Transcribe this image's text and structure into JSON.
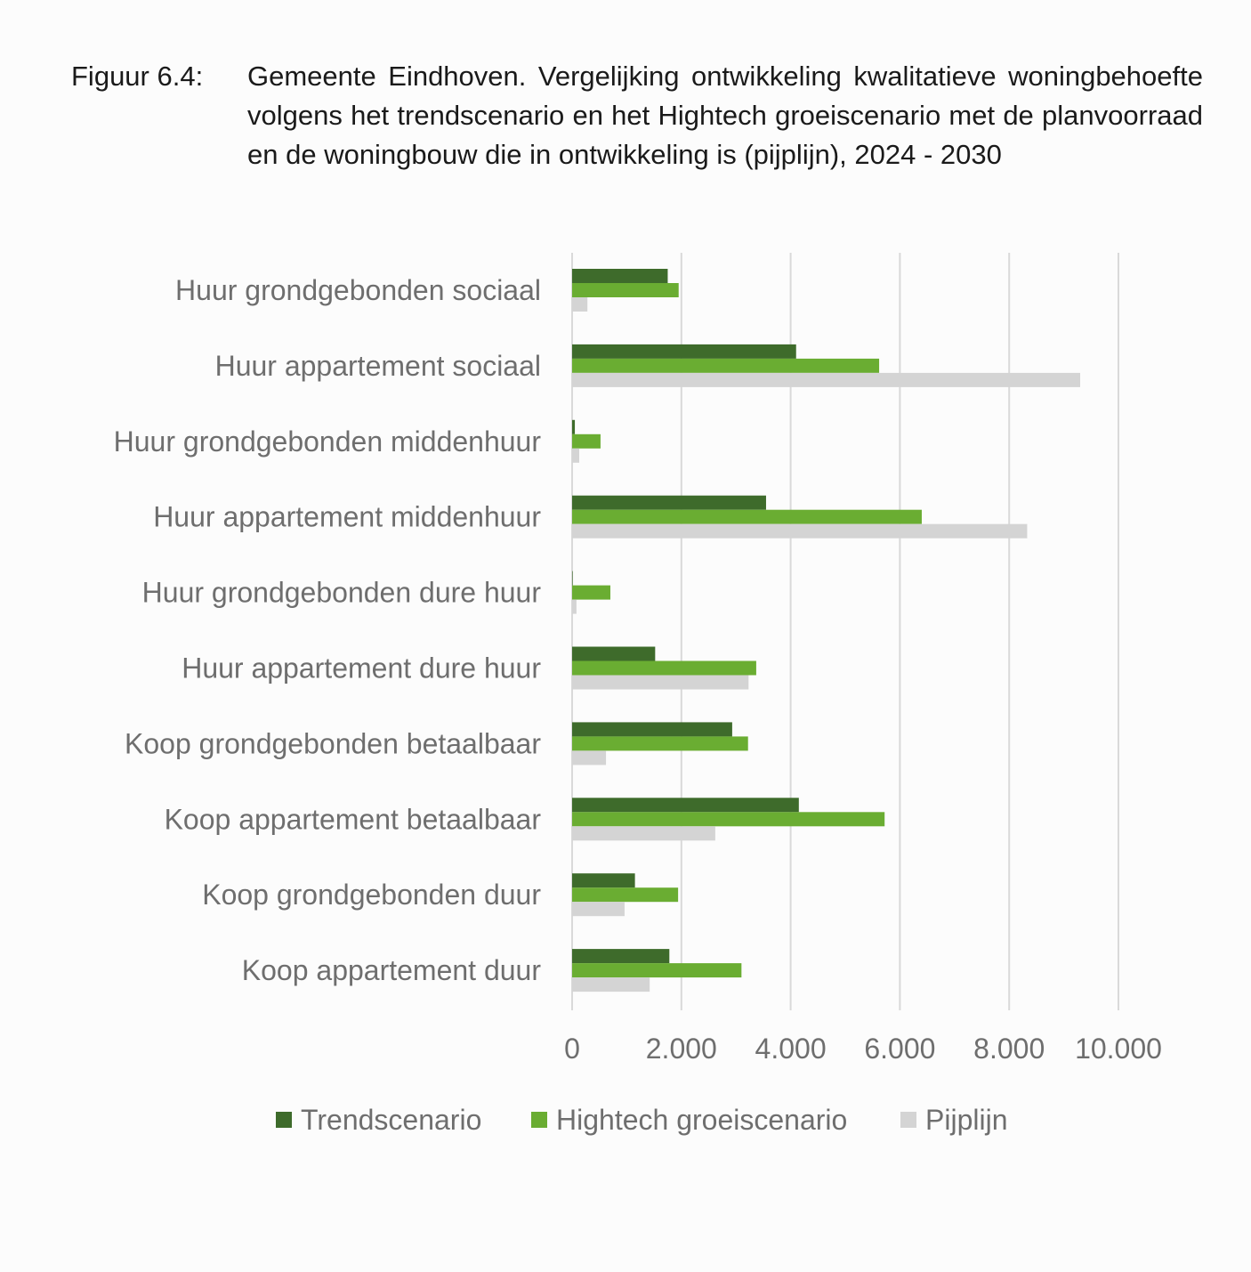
{
  "caption": {
    "label": "Figuur 6.4:",
    "text": "Gemeente Eindhoven. Vergelijking ontwikkeling kwalitatieve woningbehoefte volgens het trendscenario en het Hightech groeiscenario met de planvoorraad en de woningbouw die in ontwikkeling is (pijplijn), 2024 - 2030"
  },
  "chart_data": {
    "type": "bar",
    "orientation": "horizontal",
    "categories": [
      "Huur grondgebonden sociaal",
      "Huur appartement sociaal",
      "Huur grondgebonden middenhuur",
      "Huur appartement middenhuur",
      "Huur grondgebonden dure huur",
      "Huur appartement dure huur",
      "Koop grondgebonden betaalbaar",
      "Koop appartement betaalbaar",
      "Koop grondgebonden duur",
      "Koop appartement duur"
    ],
    "series": [
      {
        "name": "Trendscenario",
        "color": "#3e6b2b",
        "values": [
          1750,
          4100,
          50,
          3550,
          10,
          1520,
          2930,
          4150,
          1150,
          1780
        ]
      },
      {
        "name": "Hightech groeiscenario",
        "color": "#6aad32",
        "values": [
          1950,
          5620,
          520,
          6400,
          700,
          3370,
          3220,
          5720,
          1940,
          3100
        ]
      },
      {
        "name": "Pijplijn",
        "color": "#d4d4d4",
        "values": [
          280,
          9300,
          130,
          8330,
          80,
          3230,
          620,
          2620,
          960,
          1420
        ]
      }
    ],
    "xticks": [
      "0",
      "2.000",
      "4.000",
      "6.000",
      "8.000",
      "10.000"
    ],
    "xlim": [
      0,
      10000
    ],
    "grid": true,
    "legend_position": "bottom"
  }
}
